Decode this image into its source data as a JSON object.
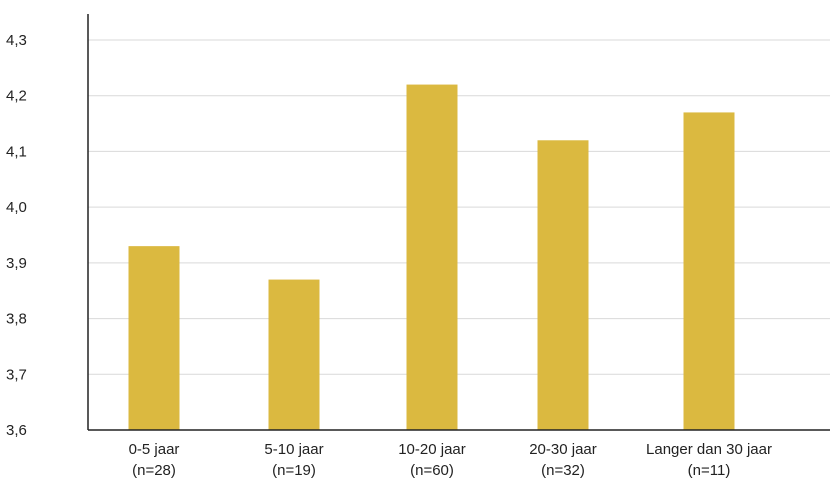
{
  "chart_data": {
    "type": "bar",
    "categories": [
      [
        "0-5 jaar",
        "(n=28)"
      ],
      [
        "5-10 jaar",
        "(n=19)"
      ],
      [
        "10-20 jaar",
        "(n=60)"
      ],
      [
        "20-30 jaar",
        "(n=32)"
      ],
      [
        "Langer dan 30 jaar",
        "(n=11)"
      ]
    ],
    "values": [
      3.93,
      3.87,
      4.22,
      4.12,
      4.17
    ],
    "ylim": [
      3.6,
      4.3
    ],
    "yticks": [
      "3,6",
      "3,7",
      "3,8",
      "3,9",
      "4,0",
      "4,1",
      "4,2",
      "4,3"
    ],
    "grid": true,
    "bar_color": "#dbb940",
    "grid_color": "#d9d9d9",
    "axis_color": "#222222"
  }
}
